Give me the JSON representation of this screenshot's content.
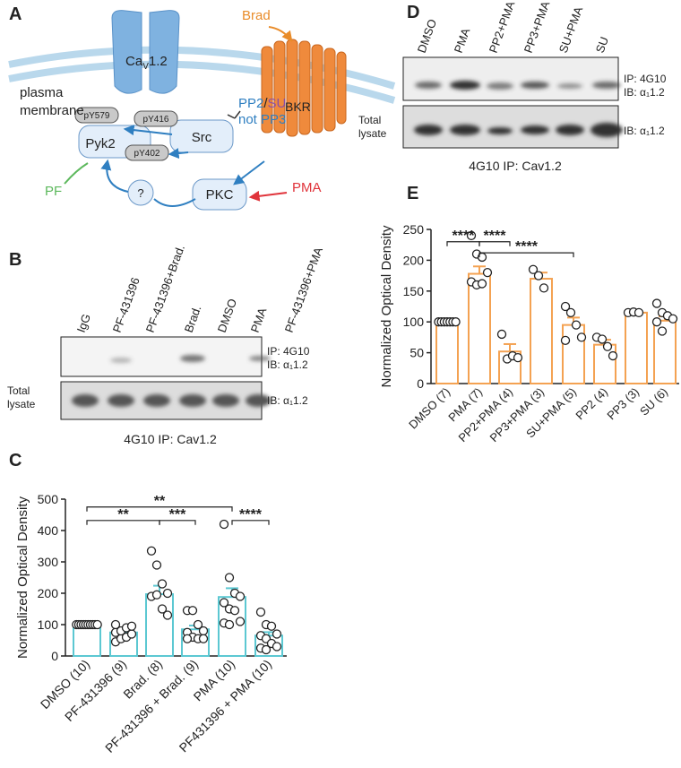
{
  "panels": {
    "a": "A",
    "b": "B",
    "c": "C",
    "d": "D",
    "e": "E"
  },
  "diagram": {
    "brad": "Brad",
    "cav": [
      "Ca",
      "V",
      "1.2"
    ],
    "bkr": "BKR",
    "membrane": [
      "plasma",
      "membrane"
    ],
    "py579": "pY579",
    "py416": "pY416",
    "py402": "pY402",
    "pyk2": "Pyk2",
    "src": "Src",
    "inhib": [
      "PP2",
      "/",
      "SU"
    ],
    "not_pp3": "not PP3",
    "pf": "PF",
    "unknown": "?",
    "pkc": "PKC",
    "pma": "PMA"
  },
  "blot_b": {
    "lanes": [
      "IgG",
      "PF-431396",
      "PF-431396+Brad.",
      "Brad.",
      "DMSO",
      "PMA",
      "PF-431396+PMA"
    ],
    "ip": "IP: 4G10",
    "ib": "IB: α₁1.2",
    "total": [
      "Total",
      "lysate"
    ],
    "ib_total": "IB: α₁1.2",
    "caption": "4G10 IP: Cav1.2"
  },
  "blot_d": {
    "lanes": [
      "DMSO",
      "PMA",
      "PP2+PMA",
      "PP3+PMA",
      "SU+PMA",
      "SU"
    ],
    "ip": "IP: 4G10",
    "ib": "IB: α₁1.2",
    "total": [
      "Total",
      "lysate"
    ],
    "ib_total": "IB: α₁1.2",
    "caption": "4G10 IP: Cav1.2"
  },
  "chart_data": [
    {
      "type": "bar",
      "ylabel": "Normalized Optical Density",
      "categories": [
        "DMSO (10)",
        "PF-431396 (9)",
        "Brad. (8)",
        "PF-431396 + Brad. (9)",
        "PMA (10)",
        "PF431396 + PMA (10)"
      ],
      "values": [
        100,
        75,
        197,
        85,
        188,
        65
      ],
      "errors": [
        0,
        10,
        27,
        12,
        28,
        11
      ],
      "points": [
        [
          100,
          100,
          100,
          100,
          100,
          100,
          100,
          100,
          100,
          100
        ],
        [
          45,
          55,
          60,
          70,
          75,
          80,
          90,
          95,
          100
        ],
        [
          335,
          290,
          230,
          200,
          190,
          195,
          150,
          130
        ],
        [
          145,
          145,
          100,
          80,
          75,
          60,
          55,
          55,
          55
        ],
        [
          420,
          250,
          200,
          190,
          170,
          150,
          145,
          110,
          105,
          100
        ],
        [
          140,
          100,
          95,
          70,
          65,
          55,
          40,
          30,
          25,
          20
        ]
      ],
      "color": "#5cc8d2",
      "ylim": [
        0,
        500
      ],
      "yticks": [
        0,
        100,
        200,
        300,
        400,
        500
      ],
      "annotations": [
        {
          "text": "**",
          "between": [
            0,
            4
          ],
          "y": 475
        },
        {
          "text": "**",
          "between": [
            0,
            2
          ],
          "y": 432
        },
        {
          "text": "***",
          "between": [
            2,
            3
          ],
          "y": 432
        },
        {
          "text": "****",
          "between": [
            4,
            5
          ],
          "y": 432
        }
      ]
    },
    {
      "type": "bar",
      "ylabel": "Normalized Optical Density",
      "categories": [
        "DMSO (7)",
        "PMA (7)",
        "PP2+PMA (4)",
        "PP3+PMA (3)",
        "SU+PMA (5)",
        "PP2 (4)",
        "PP3 (3)",
        "SU (6)"
      ],
      "values": [
        100,
        178,
        52,
        170,
        95,
        63,
        115,
        102
      ],
      "errors": [
        0,
        12,
        12,
        10,
        12,
        8,
        1,
        7
      ],
      "points": [
        [
          100,
          100,
          100,
          100,
          100,
          100,
          100
        ],
        [
          240,
          210,
          205,
          180,
          165,
          160,
          162
        ],
        [
          80,
          40,
          45,
          42
        ],
        [
          185,
          175,
          155
        ],
        [
          125,
          115,
          95,
          75,
          70
        ],
        [
          75,
          72,
          60,
          45
        ],
        [
          115,
          116,
          115
        ],
        [
          130,
          115,
          110,
          105,
          100,
          85
        ]
      ],
      "color": "#f4a252",
      "ylim": [
        0,
        250
      ],
      "yticks": [
        0,
        50,
        100,
        150,
        200,
        250
      ],
      "annotations": [
        {
          "text": "****",
          "between": [
            0,
            1
          ],
          "y": 230
        },
        {
          "text": "****",
          "between": [
            1,
            2
          ],
          "y": 230
        },
        {
          "text": "****",
          "between": [
            1,
            4
          ],
          "y": 212
        }
      ]
    }
  ]
}
